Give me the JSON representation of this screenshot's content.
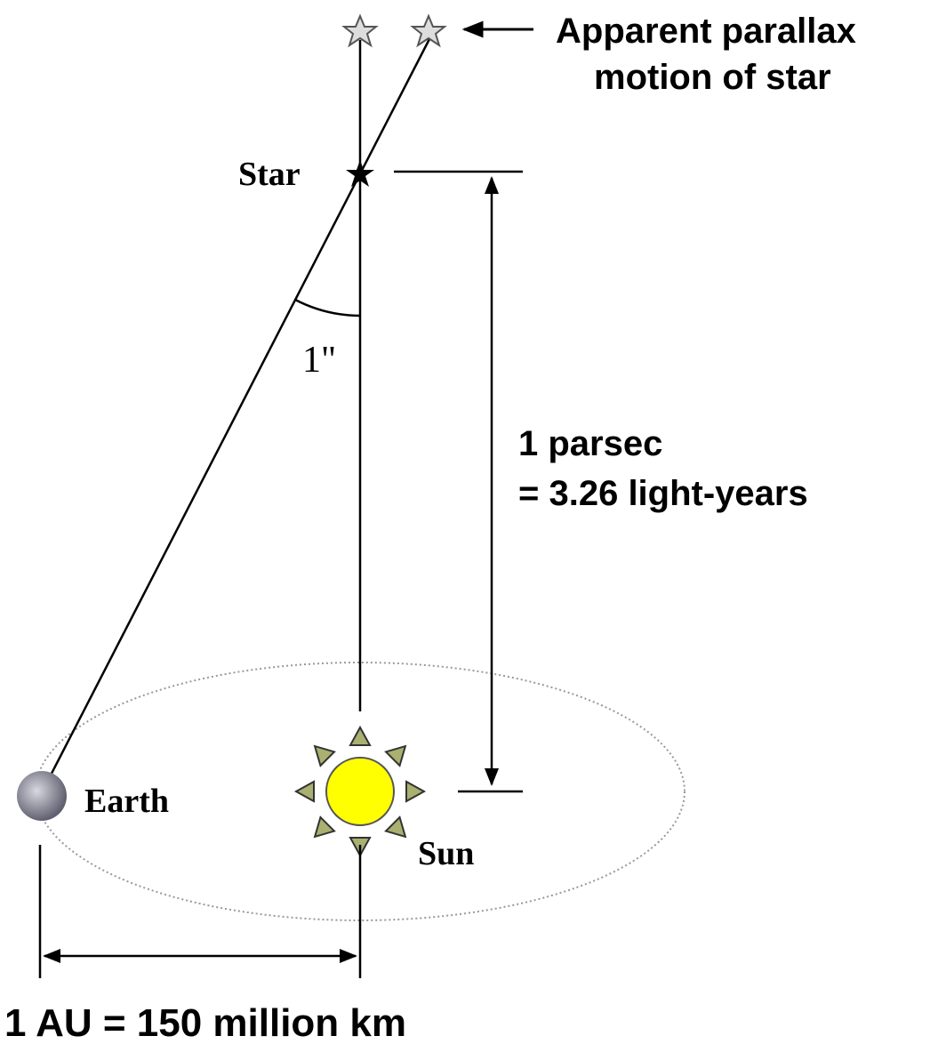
{
  "annotation": {
    "line1": "Apparent parallax",
    "line2": "motion of star"
  },
  "labels": {
    "star": "Star",
    "angle": "1\"",
    "earth": "Earth",
    "sun": "Sun"
  },
  "distance": {
    "line1": "1 parsec",
    "line2": "= 3.26 light-years"
  },
  "baseline": "1 AU = 150 million km"
}
